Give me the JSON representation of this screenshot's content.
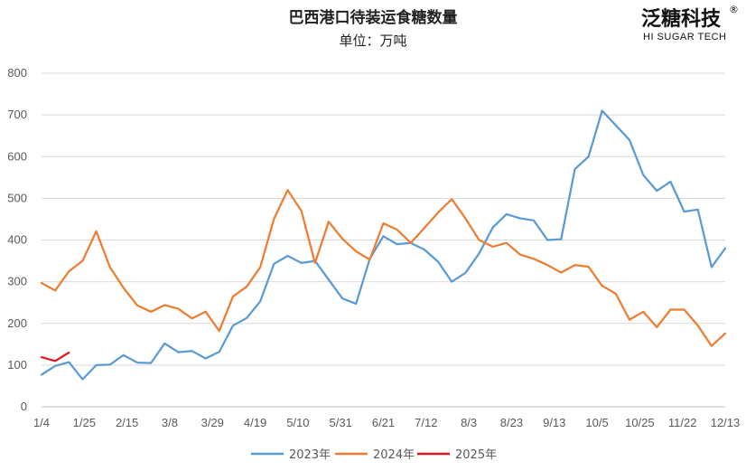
{
  "logo": {
    "cn": "泛糖科技",
    "en": "HI SUGAR TECH",
    "reg": "®"
  },
  "chart_data": {
    "type": "line",
    "title": "巴西港口待装运食糖数量",
    "subtitle": "单位：万吨",
    "xlabel": "",
    "ylabel": "",
    "ylim": [
      0,
      800
    ],
    "yticks": [
      0,
      100,
      200,
      300,
      400,
      500,
      600,
      700,
      800
    ],
    "x_tick_labels": [
      "1/4",
      "1/25",
      "2/15",
      "3/8",
      "3/29",
      "4/19",
      "5/10",
      "5/31",
      "6/21",
      "7/12",
      "8/3",
      "8/23",
      "9/13",
      "10/5",
      "10/25",
      "11/22",
      "12/13"
    ],
    "grid": true,
    "legend_position": "bottom",
    "series": [
      {
        "name": "2023年",
        "color": "#5b9bd5",
        "values": [
          77,
          98,
          107,
          66,
          100,
          101,
          124,
          106,
          105,
          152,
          131,
          134,
          116,
          132,
          195,
          213,
          253,
          343,
          362,
          345,
          350,
          305,
          260,
          247,
          355,
          409,
          390,
          393,
          377,
          348,
          300,
          321,
          368,
          430,
          462,
          452,
          447,
          400,
          402,
          570,
          600,
          710,
          675,
          640,
          556,
          518,
          540,
          468,
          473,
          335,
          380
        ]
      },
      {
        "name": "2024年",
        "color": "#ed7d31",
        "values": [
          297,
          279,
          325,
          350,
          421,
          335,
          285,
          243,
          228,
          244,
          235,
          212,
          228,
          182,
          265,
          288,
          335,
          451,
          520,
          470,
          345,
          444,
          403,
          373,
          353,
          440,
          425,
          393,
          429,
          466,
          498,
          452,
          400,
          384,
          393,
          365,
          355,
          340,
          322,
          340,
          336,
          290,
          271,
          209,
          228,
          191,
          233,
          233,
          195,
          146,
          176
        ]
      },
      {
        "name": "2025年",
        "color": "#e3161f",
        "values": [
          119,
          110,
          130
        ]
      }
    ]
  }
}
